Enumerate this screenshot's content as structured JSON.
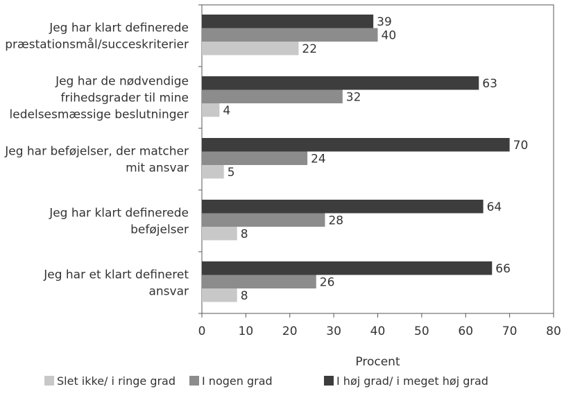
{
  "chart_data": {
    "type": "bar",
    "orientation": "horizontal",
    "categories": [
      [
        "Jeg har klart definerede",
        "præstationsmål/succeskriterier"
      ],
      [
        "Jeg har de nødvendige",
        "frihedsgrader til mine",
        "ledelsesmæssige beslutninger"
      ],
      [
        "Jeg har beføjelser, der matcher",
        "mit ansvar"
      ],
      [
        "Jeg har klart definerede",
        "beføjelser"
      ],
      [
        "Jeg har et klart defineret",
        "ansvar"
      ]
    ],
    "series": [
      {
        "name": "I høj grad/ i meget høj grad",
        "color": "#3d3d3d",
        "values": [
          39,
          63,
          70,
          64,
          66
        ]
      },
      {
        "name": "I nogen grad",
        "color": "#8c8c8c",
        "values": [
          40,
          32,
          24,
          28,
          26
        ]
      },
      {
        "name": "Slet ikke/ i ringe grad",
        "color": "#c8c8c8",
        "values": [
          22,
          4,
          5,
          8,
          8
        ]
      }
    ],
    "legend_order": [
      2,
      1,
      0
    ],
    "xlabel": "Procent",
    "ylabel": "",
    "xlim": [
      0,
      80
    ],
    "xticks": [
      0,
      10,
      20,
      30,
      40,
      50,
      60,
      70,
      80
    ],
    "grid": false,
    "legend_position": "bottom"
  }
}
